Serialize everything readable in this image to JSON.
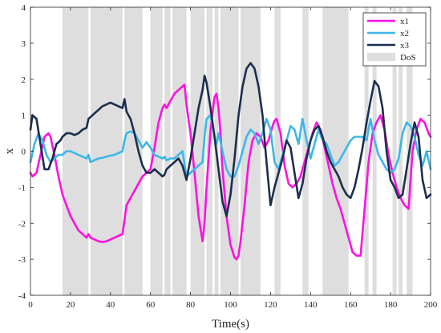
{
  "chart_data": {
    "type": "line",
    "xlabel": "Time(s)",
    "ylabel": "x",
    "xlim": [
      0,
      200
    ],
    "ylim": [
      -4,
      4
    ],
    "xticks": [
      "0",
      "20",
      "40",
      "60",
      "80",
      "100",
      "120",
      "140",
      "160",
      "180",
      "200"
    ],
    "yticks": [
      "-4",
      "-3",
      "-2",
      "-1",
      "0",
      "1",
      "2",
      "3",
      "4"
    ],
    "grid": false,
    "legend_position": "top-right",
    "dos_label": "DoS",
    "dos_color": "#dedede",
    "dos_intervals": [
      [
        16,
        29
      ],
      [
        30,
        46
      ],
      [
        47,
        56
      ],
      [
        60,
        66
      ],
      [
        67,
        70
      ],
      [
        71,
        78
      ],
      [
        80,
        87
      ],
      [
        88,
        91
      ],
      [
        92,
        94
      ],
      [
        95,
        104
      ],
      [
        105,
        115
      ],
      [
        122,
        125
      ],
      [
        136,
        139
      ],
      [
        146,
        159
      ],
      [
        167,
        169
      ],
      [
        171,
        173
      ],
      [
        181,
        183
      ],
      [
        184,
        186
      ],
      [
        188,
        191
      ]
    ],
    "series": [
      {
        "name": "x1",
        "color": "#ff10e0",
        "x": [
          0,
          1,
          3,
          5,
          7,
          9,
          10,
          12,
          14,
          16,
          18,
          20,
          22,
          24,
          26,
          28,
          29,
          30,
          32,
          34,
          36,
          38,
          40,
          42,
          44,
          46,
          47,
          48,
          50,
          52,
          54,
          56,
          58,
          60,
          62,
          64,
          66,
          67,
          68,
          70,
          72,
          74,
          76,
          77,
          78,
          80,
          82,
          84,
          86,
          87,
          88,
          90,
          92,
          93,
          94,
          95,
          96,
          98,
          100,
          102,
          103,
          104,
          105,
          107,
          109,
          111,
          113,
          115,
          117,
          119,
          121,
          122,
          123,
          125,
          127,
          129,
          131,
          133,
          135,
          137,
          139,
          141,
          143,
          145,
          147,
          149,
          151,
          153,
          155,
          157,
          159,
          161,
          163,
          165,
          167,
          169,
          171,
          173,
          175,
          177,
          179,
          181,
          183,
          185,
          187,
          189,
          191,
          193,
          195,
          197,
          199,
          200
        ],
        "y": [
          -0.6,
          -0.7,
          -0.6,
          -0.1,
          0.4,
          0.5,
          0.4,
          -0.1,
          -0.7,
          -1.2,
          -1.5,
          -1.8,
          -2.0,
          -2.2,
          -2.3,
          -2.4,
          -2.3,
          -2.4,
          -2.45,
          -2.5,
          -2.52,
          -2.5,
          -2.45,
          -2.4,
          -2.35,
          -2.3,
          -1.9,
          -1.5,
          -1.3,
          -1.1,
          -0.9,
          -0.7,
          -0.6,
          -0.5,
          0.1,
          0.8,
          1.2,
          1.3,
          1.2,
          1.4,
          1.6,
          1.7,
          1.8,
          1.85,
          1.3,
          0.5,
          -0.6,
          -1.8,
          -2.5,
          -2.0,
          -1.0,
          0.6,
          1.5,
          1.6,
          1.2,
          0.5,
          -0.5,
          -1.8,
          -2.6,
          -2.95,
          -3.0,
          -2.9,
          -2.5,
          -1.5,
          -0.3,
          0.3,
          0.5,
          0.4,
          0.1,
          0.3,
          0.7,
          0.85,
          0.9,
          0.5,
          -0.4,
          -0.9,
          -1.0,
          -0.9,
          -0.7,
          -0.3,
          0.1,
          0.5,
          0.8,
          0.6,
          0.1,
          -0.4,
          -0.9,
          -1.3,
          -1.6,
          -2.0,
          -2.4,
          -2.8,
          -2.9,
          -2.9,
          -1.6,
          -0.3,
          0.5,
          0.8,
          1.0,
          0.6,
          -0.1,
          -0.6,
          -1.0,
          -1.3,
          -1.5,
          -1.6,
          0.0,
          0.6,
          0.9,
          0.8,
          0.5,
          0.4
        ]
      },
      {
        "name": "x2",
        "color": "#3db7e8",
        "x": [
          0,
          2,
          4,
          6,
          8,
          10,
          12,
          14,
          16,
          18,
          20,
          22,
          24,
          26,
          28,
          29,
          30,
          32,
          34,
          36,
          38,
          40,
          42,
          44,
          46,
          47,
          48,
          50,
          52,
          54,
          56,
          58,
          60,
          62,
          64,
          66,
          67,
          68,
          70,
          72,
          74,
          76,
          78,
          80,
          82,
          84,
          86,
          87,
          88,
          90,
          92,
          93,
          94,
          96,
          98,
          100,
          102,
          104,
          106,
          108,
          110,
          112,
          114,
          116,
          118,
          120,
          122,
          124,
          126,
          128,
          130,
          132,
          134,
          136,
          138,
          140,
          142,
          144,
          146,
          148,
          150,
          152,
          154,
          156,
          158,
          160,
          162,
          164,
          166,
          168,
          170,
          172,
          174,
          176,
          178,
          180,
          182,
          184,
          186,
          188,
          190,
          192,
          194,
          196,
          198,
          200
        ],
        "y": [
          -0.3,
          0.2,
          0.5,
          0.3,
          -0.1,
          -0.3,
          -0.2,
          -0.1,
          -0.1,
          0.0,
          0.0,
          -0.05,
          -0.1,
          -0.15,
          -0.2,
          -0.1,
          -0.3,
          -0.25,
          -0.2,
          -0.18,
          -0.15,
          -0.12,
          -0.1,
          -0.05,
          -0.0,
          0.3,
          0.5,
          0.55,
          0.5,
          0.3,
          0.1,
          0.25,
          0.1,
          -0.1,
          -0.15,
          -0.2,
          -0.15,
          -0.25,
          -0.2,
          -0.2,
          -0.1,
          0.0,
          -0.7,
          -0.6,
          -0.5,
          -0.4,
          -0.3,
          0.4,
          0.9,
          1.0,
          0.4,
          0.2,
          0.5,
          0.0,
          -0.5,
          -0.7,
          -0.7,
          -0.4,
          0.0,
          0.4,
          0.6,
          0.5,
          0.2,
          0.5,
          0.9,
          0.6,
          -0.3,
          -0.5,
          -0.1,
          0.3,
          0.7,
          0.6,
          0.2,
          0.9,
          0.3,
          -0.2,
          0.2,
          0.6,
          0.3,
          0.2,
          -0.1,
          -0.4,
          -0.3,
          -0.1,
          0.1,
          0.3,
          0.4,
          0.4,
          0.4,
          0.3,
          0.9,
          0.3,
          -0.1,
          -0.3,
          -0.5,
          -0.6,
          -0.5,
          -0.2,
          0.5,
          0.8,
          0.7,
          0.4,
          -0.1,
          -0.4,
          0.0,
          -0.5
        ]
      },
      {
        "name": "x3",
        "color": "#1c2e4e",
        "x": [
          0,
          1,
          3,
          5,
          7,
          9,
          11,
          13,
          15,
          16,
          18,
          20,
          22,
          24,
          26,
          28,
          29,
          30,
          32,
          34,
          36,
          38,
          40,
          42,
          44,
          46,
          47,
          48,
          50,
          52,
          54,
          56,
          58,
          60,
          62,
          64,
          66,
          67,
          68,
          70,
          72,
          74,
          76,
          77,
          78,
          80,
          82,
          84,
          86,
          87,
          88,
          90,
          92,
          94,
          96,
          98,
          100,
          102,
          104,
          106,
          108,
          110,
          112,
          114,
          116,
          118,
          120,
          122,
          124,
          126,
          128,
          130,
          132,
          134,
          136,
          138,
          140,
          142,
          144,
          146,
          148,
          150,
          152,
          154,
          156,
          158,
          160,
          162,
          164,
          166,
          168,
          170,
          172,
          174,
          176,
          178,
          180,
          182,
          184,
          186,
          188,
          190,
          192,
          194,
          196,
          198,
          200
        ],
        "y": [
          0.6,
          1.0,
          0.9,
          0.2,
          -0.5,
          -0.5,
          -0.2,
          0.2,
          0.3,
          0.4,
          0.5,
          0.5,
          0.45,
          0.5,
          0.6,
          0.65,
          0.9,
          0.95,
          1.05,
          1.15,
          1.25,
          1.3,
          1.35,
          1.3,
          1.25,
          1.2,
          1.45,
          1.1,
          0.9,
          0.5,
          0.0,
          -0.4,
          -0.6,
          -0.6,
          -0.5,
          -0.6,
          -0.7,
          -0.65,
          -0.5,
          -0.4,
          -0.3,
          -0.2,
          -0.4,
          -0.6,
          -0.8,
          -0.2,
          0.5,
          1.2,
          1.7,
          2.1,
          1.9,
          1.2,
          0.4,
          -0.5,
          -1.4,
          -1.8,
          -1.2,
          -0.2,
          1.0,
          1.8,
          2.3,
          2.45,
          2.3,
          1.8,
          1.0,
          -0.3,
          -1.5,
          -1.0,
          -0.6,
          -0.2,
          0.3,
          0.1,
          -0.6,
          -1.3,
          -0.9,
          -0.2,
          0.3,
          0.6,
          0.7,
          0.4,
          0.0,
          -0.3,
          -0.5,
          -0.7,
          -1.0,
          -1.2,
          -1.3,
          -1.0,
          -0.5,
          0.1,
          0.8,
          1.4,
          1.95,
          1.8,
          1.2,
          0.0,
          -0.8,
          -1.0,
          -1.3,
          -1.2,
          -0.5,
          0.2,
          0.8,
          0.4,
          -0.8,
          -1.3,
          -1.2
        ]
      }
    ]
  }
}
